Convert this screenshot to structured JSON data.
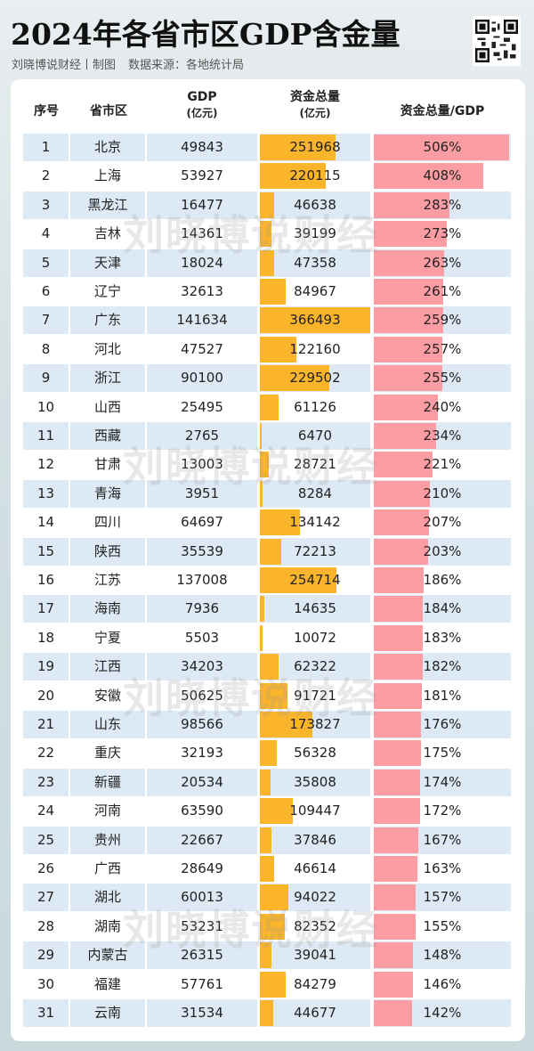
{
  "header": {
    "title": "2024年各省市区GDP含金量",
    "credit": "刘晓博说财经丨制图",
    "source": "数据来源：各地统计局",
    "qr_icon": "qr-code-icon"
  },
  "watermark": "刘晓博说财经",
  "colors": {
    "fund_bar": "#fbb52a",
    "ratio_bar": "#fc9ca3",
    "row_alt": "#dde9f5"
  },
  "chart_data": {
    "type": "table",
    "columns": [
      {
        "label": "序号"
      },
      {
        "label": "省市区"
      },
      {
        "label": "GDP",
        "unit": "(亿元)"
      },
      {
        "label": "资金总量",
        "unit": "(亿元)"
      },
      {
        "label": "资金总量/GDP"
      }
    ],
    "rows": [
      {
        "rank": "1",
        "region": "北京",
        "gdp": 49843,
        "funds": 251968,
        "ratio": 506
      },
      {
        "rank": "2",
        "region": "上海",
        "gdp": 53927,
        "funds": 220115,
        "ratio": 408
      },
      {
        "rank": "3",
        "region": "黑龙江",
        "gdp": 16477,
        "funds": 46638,
        "ratio": 283
      },
      {
        "rank": "4",
        "region": "吉林",
        "gdp": 14361,
        "funds": 39199,
        "ratio": 273
      },
      {
        "rank": "5",
        "region": "天津",
        "gdp": 18024,
        "funds": 47358,
        "ratio": 263
      },
      {
        "rank": "6",
        "region": "辽宁",
        "gdp": 32613,
        "funds": 84967,
        "ratio": 261
      },
      {
        "rank": "7",
        "region": "广东",
        "gdp": 141634,
        "funds": 366493,
        "ratio": 259
      },
      {
        "rank": "8",
        "region": "河北",
        "gdp": 47527,
        "funds": 122160,
        "ratio": 257
      },
      {
        "rank": "9",
        "region": "浙江",
        "gdp": 90100,
        "funds": 229502,
        "ratio": 255
      },
      {
        "rank": "10",
        "region": "山西",
        "gdp": 25495,
        "funds": 61126,
        "ratio": 240
      },
      {
        "rank": "11",
        "region": "西藏",
        "gdp": 2765,
        "funds": 6470,
        "ratio": 234
      },
      {
        "rank": "12",
        "region": "甘肃",
        "gdp": 13003,
        "funds": 28721,
        "ratio": 221
      },
      {
        "rank": "13",
        "region": "青海",
        "gdp": 3951,
        "funds": 8284,
        "ratio": 210
      },
      {
        "rank": "14",
        "region": "四川",
        "gdp": 64697,
        "funds": 134142,
        "ratio": 207
      },
      {
        "rank": "15",
        "region": "陕西",
        "gdp": 35539,
        "funds": 72213,
        "ratio": 203
      },
      {
        "rank": "16",
        "region": "江苏",
        "gdp": 137008,
        "funds": 254714,
        "ratio": 186
      },
      {
        "rank": "17",
        "region": "海南",
        "gdp": 7936,
        "funds": 14635,
        "ratio": 184
      },
      {
        "rank": "18",
        "region": "宁夏",
        "gdp": 5503,
        "funds": 10072,
        "ratio": 183
      },
      {
        "rank": "19",
        "region": "江西",
        "gdp": 34203,
        "funds": 62322,
        "ratio": 182
      },
      {
        "rank": "20",
        "region": "安徽",
        "gdp": 50625,
        "funds": 91721,
        "ratio": 181
      },
      {
        "rank": "21",
        "region": "山东",
        "gdp": 98566,
        "funds": 173827,
        "ratio": 176
      },
      {
        "rank": "22",
        "region": "重庆",
        "gdp": 32193,
        "funds": 56328,
        "ratio": 175
      },
      {
        "rank": "23",
        "region": "新疆",
        "gdp": 20534,
        "funds": 35808,
        "ratio": 174
      },
      {
        "rank": "24",
        "region": "河南",
        "gdp": 63590,
        "funds": 109447,
        "ratio": 172
      },
      {
        "rank": "25",
        "region": "贵州",
        "gdp": 22667,
        "funds": 37846,
        "ratio": 167
      },
      {
        "rank": "26",
        "region": "广西",
        "gdp": 28649,
        "funds": 46614,
        "ratio": 163
      },
      {
        "rank": "27",
        "region": "湖北",
        "gdp": 60013,
        "funds": 94022,
        "ratio": 157
      },
      {
        "rank": "28",
        "region": "湖南",
        "gdp": 53231,
        "funds": 82352,
        "ratio": 155
      },
      {
        "rank": "29",
        "region": "内蒙古",
        "gdp": 26315,
        "funds": 39041,
        "ratio": 148
      },
      {
        "rank": "30",
        "region": "福建",
        "gdp": 57761,
        "funds": 84279,
        "ratio": 146
      },
      {
        "rank": "31",
        "region": "云南",
        "gdp": 31534,
        "funds": 44677,
        "ratio": 142
      }
    ]
  }
}
